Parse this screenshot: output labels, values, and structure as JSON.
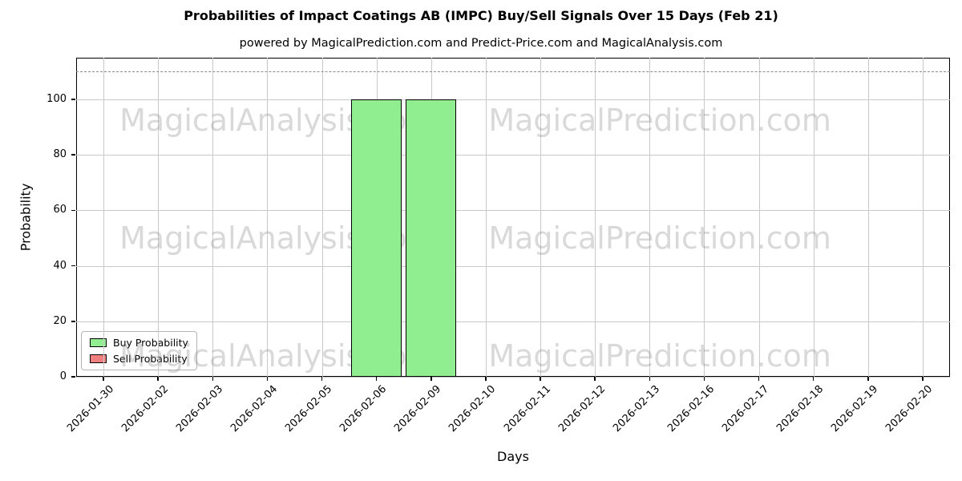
{
  "chart_data": {
    "type": "bar",
    "title": "Probabilities of Impact Coatings AB (IMPC) Buy/Sell Signals Over 15 Days (Feb 21)",
    "subtitle": "powered by MagicalPrediction.com and Predict-Price.com and MagicalAnalysis.com",
    "xlabel": "Days",
    "ylabel": "Probability",
    "ylim": [
      0,
      115
    ],
    "yticks": [
      0,
      20,
      40,
      60,
      80,
      100
    ],
    "grid": true,
    "legend_position": "lower-left",
    "categories": [
      "2026-01-30",
      "2026-02-02",
      "2026-02-03",
      "2026-02-04",
      "2026-02-05",
      "2026-02-06",
      "2026-02-09",
      "2026-02-10",
      "2026-02-11",
      "2026-02-12",
      "2026-02-13",
      "2026-02-16",
      "2026-02-17",
      "2026-02-18",
      "2026-02-19",
      "2026-02-20"
    ],
    "series": [
      {
        "name": "Buy Probability",
        "color": "#90EE90",
        "edge_color": "#000000",
        "values": [
          0,
          0,
          0,
          0,
          0,
          100,
          100,
          0,
          0,
          0,
          0,
          0,
          0,
          0,
          0,
          0
        ]
      },
      {
        "name": "Sell Probability",
        "color": "#F08080",
        "edge_color": "#000000",
        "values": [
          0,
          0,
          0,
          0,
          0,
          0,
          0,
          0,
          0,
          0,
          0,
          0,
          0,
          0,
          0,
          0
        ]
      }
    ],
    "threshold_line": {
      "y": 110,
      "style": "dashed",
      "color": "#8a8a8a"
    },
    "watermarks": [
      "MagicalAnalysis.com",
      "MagicalPrediction.com"
    ]
  }
}
